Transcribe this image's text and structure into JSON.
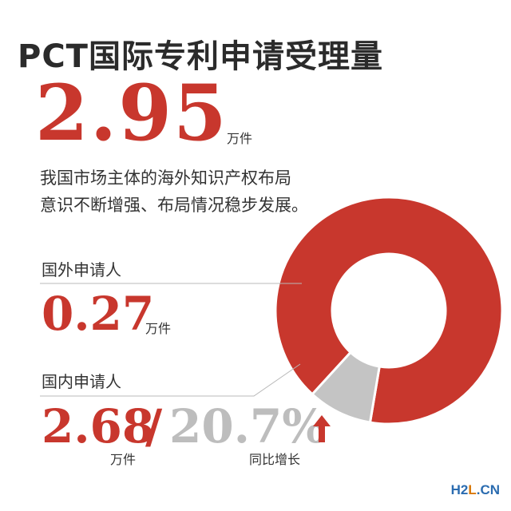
{
  "title": "PCT国际专利申请受理量",
  "total": {
    "value": "2.95",
    "unit": "万件"
  },
  "description": [
    "我国市场主体的海外知识产权布局",
    "意识不断增强、布局情况稳步发展。"
  ],
  "foreign": {
    "label": "国外申请人",
    "value": "0.27",
    "unit": "万件"
  },
  "domestic": {
    "label": "国内申请人",
    "value": "2.68",
    "separator": "/",
    "unit": "万件",
    "growth": "20.7%",
    "growth_label": "同比增长"
  },
  "watermark": {
    "h2": "H2",
    "l": "L",
    "cn": ".CN"
  },
  "colors": {
    "domestic": "#c8372d",
    "foreign": "#c4c4c4",
    "growth": "#bdbdbd",
    "arrow": "#c8372d"
  },
  "icons": {
    "growth_arrow": "up-arrow-icon"
  },
  "chart_data": {
    "type": "pie",
    "style": "donut",
    "values": [
      2.68,
      0.27
    ],
    "categories": [
      "国内申请人",
      "国外申请人"
    ],
    "total": 2.95,
    "unit": "万件",
    "colors": [
      "#c8372d",
      "#c4c4c4"
    ]
  }
}
